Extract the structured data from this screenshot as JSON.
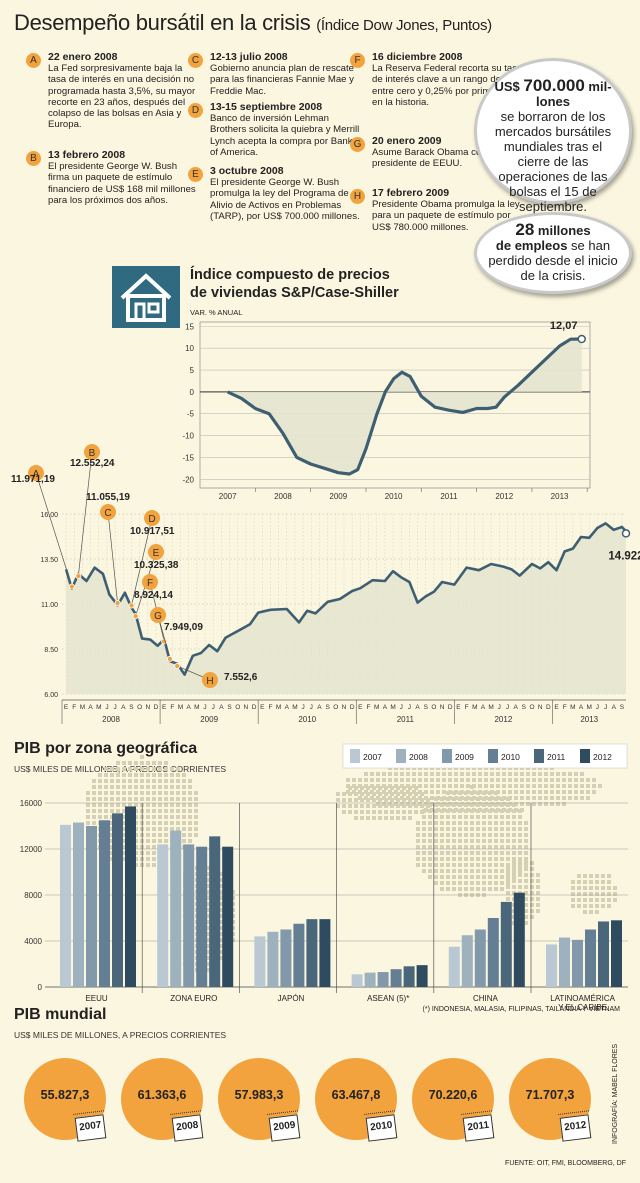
{
  "title": "Desempeño bursátil en la crisis",
  "title_sub": "(Índice Dow Jones, Puntos)",
  "events": [
    {
      "badge": "A",
      "date": "22 enero 2008",
      "text": "La Fed sorpresivamente baja la tasa de interés en una decisión no programada hasta 3,5%, su mayor recorte en 23 años, después del colapso de las bolsas en Asia y Europa."
    },
    {
      "badge": "B",
      "date": "13 febrero 2008",
      "text": "El presidente George W. Bush firma un paquete de estímulo financiero de US$ 168 mil millones para los próximos dos años."
    },
    {
      "badge": "C",
      "date": "12-13 julio 2008",
      "text": "Gobierno anuncia plan de rescate para las financieras Fannie Mae y Freddie Mac."
    },
    {
      "badge": "D",
      "date": "13-15 septiembre 2008",
      "text": "Banco de inversión Lehman Brothers solicita la quiebra y Merrill Lynch acepta la compra por Bank of America."
    },
    {
      "badge": "E",
      "date": "3 octubre 2008",
      "text": "El presidente George W. Bush promulga la ley del Programa de Alivio de Activos en Problemas (TARP), por US$ 700.000 millones."
    },
    {
      "badge": "F",
      "date": "16 diciembre 2008",
      "text": "La Reserva Federal recorta su tasa de interés clave a un rango de entre cero y 0,25% por primera vez en la historia."
    },
    {
      "badge": "G",
      "date": "20 enero 2009",
      "text": "Asume Barack Obama como presidente de EEUU."
    },
    {
      "badge": "H",
      "date": "17 febrero 2009",
      "text": "Presidente Obama promulga la ley para un paquete de estímulo por US$ 780.000 millones."
    }
  ],
  "bubble1": {
    "pre": "US$ ",
    "big": "700.000",
    "post": " mil-lones",
    "text": "se borraron de los mercados bursátiles mundiales tras el cierre de las operaciones de las bolsas el 15 de septiembre."
  },
  "bubble2": {
    "big": "28",
    "post": " millones",
    "bold2": "de empleos",
    "text1": " se han",
    "text2": "perdido desde el inicio de la crisis."
  },
  "case_shiller": {
    "icon": "house-icon",
    "title_line1": "Índice compuesto de precios",
    "title_line2": "de viviendas S&P/Case-Shiller",
    "unit": "VAR. % ANUAL",
    "last_label": "12,07"
  },
  "dow_annotations": [
    {
      "badge": "A",
      "value": "11.971,19"
    },
    {
      "badge": "B",
      "value": "12.552,24"
    },
    {
      "badge": "C",
      "value": "11.055,19"
    },
    {
      "badge": "D",
      "value": "10.917,51"
    },
    {
      "badge": "E",
      "value": "10.325,38"
    },
    {
      "badge": "F",
      "value": "8.924,14"
    },
    {
      "badge": "G",
      "value": "7.949,09"
    },
    {
      "badge": "H",
      "value": "7.552,6"
    }
  ],
  "dow_last": "14.922",
  "pib_zona": {
    "title": "PIB por zona geográfica",
    "unit": "US$ MILES DE MILLONES, A PRECIOS CORRIENTES",
    "note": "(*) INDONESIA, MALASIA, FILIPINAS, TAILANDIA Y VIETNAM"
  },
  "pib_mundial": {
    "title": "PIB mundial",
    "unit": "US$ MILES DE MILLONES, A PRECIOS CORRIENTES",
    "items": [
      {
        "year": "2007",
        "value": "55.827,3"
      },
      {
        "year": "2008",
        "value": "61.363,6"
      },
      {
        "year": "2009",
        "value": "57.983,3"
      },
      {
        "year": "2010",
        "value": "63.467,8"
      },
      {
        "year": "2011",
        "value": "70.220,6"
      },
      {
        "year": "2012",
        "value": "71.707,3"
      }
    ]
  },
  "credit": "INFOGRAFÍA: MABEL FLORES",
  "source": "FUENTE: OIT, FMI, BLOOMBERG, DF",
  "colors": {
    "line": "#3e5f72",
    "orange": "#f2a33d",
    "bg": "#fbf6df",
    "fill": "#e4e4cf"
  },
  "chart_data": [
    {
      "type": "line",
      "title": "Índice compuesto de precios de viviendas S&P/Case-Shiller",
      "ylabel": "VAR. % ANUAL",
      "ylim": [
        -22,
        16
      ],
      "yticks": [
        15,
        10,
        5,
        0,
        -5,
        -10,
        -15,
        -20
      ],
      "xticks": [
        "2007",
        "2008",
        "2009",
        "2010",
        "2011",
        "2012",
        "2013"
      ],
      "x": [
        2007.0,
        2007.25,
        2007.5,
        2007.75,
        2008.0,
        2008.25,
        2008.5,
        2008.75,
        2009.0,
        2009.2,
        2009.35,
        2009.5,
        2009.7,
        2009.85,
        2010.0,
        2010.15,
        2010.3,
        2010.5,
        2010.75,
        2011.0,
        2011.25,
        2011.5,
        2011.7,
        2011.85,
        2012.0,
        2012.25,
        2012.5,
        2012.75,
        2013.0,
        2013.2,
        2013.4
      ],
      "y": [
        0,
        -1.5,
        -3.8,
        -5,
        -9.5,
        -15,
        -16.5,
        -17.5,
        -18.5,
        -18.8,
        -17.8,
        -13,
        -5,
        0,
        3,
        4.5,
        3.5,
        -1,
        -3.5,
        -4.2,
        -4.7,
        -3.8,
        -3.8,
        -3.5,
        -1.2,
        1.5,
        4.5,
        7.5,
        10.5,
        12.07,
        12.1
      ],
      "last_label": "12,07"
    },
    {
      "type": "line",
      "title": "Desempeño bursátil en la crisis (Índice Dow Jones, Puntos)",
      "ylim": [
        6000,
        16000
      ],
      "yticks": [
        "16.00",
        "13.50",
        "11.00",
        "8.50",
        "6.00"
      ],
      "months": [
        "E",
        "F",
        "M",
        "A",
        "M",
        "J",
        "J",
        "A",
        "S",
        "O",
        "N",
        "D",
        "E",
        "F",
        "M",
        "A",
        "M",
        "J",
        "J",
        "A",
        "S",
        "O",
        "N",
        "D",
        "E",
        "F",
        "M",
        "A",
        "M",
        "J",
        "J",
        "A",
        "S",
        "O",
        "N",
        "D",
        "E",
        "F",
        "M",
        "A",
        "M",
        "J",
        "J",
        "A",
        "S",
        "O",
        "N",
        "D",
        "E",
        "F",
        "M",
        "A",
        "M",
        "J",
        "J",
        "A",
        "S",
        "O",
        "N",
        "D",
        "E",
        "F",
        "M",
        "A",
        "M",
        "J",
        "J",
        "A",
        "S"
      ],
      "years": [
        "2008",
        "2009",
        "2010",
        "2011",
        "2012",
        "2013"
      ],
      "x": [
        0,
        0.7,
        1.5,
        2.5,
        3.5,
        4.5,
        5.3,
        6.3,
        7.2,
        8.0,
        8.5,
        9.3,
        10.3,
        11.2,
        12.0,
        12.7,
        13.6,
        14.5,
        15.5,
        16.5,
        17.5,
        18.5,
        19.5,
        20.5,
        21.5,
        22.5,
        23.5,
        25,
        27,
        28.5,
        29.5,
        30.5,
        32,
        33.5,
        35,
        36,
        37.5,
        39,
        40,
        41,
        42,
        43,
        44,
        45,
        46,
        47.5,
        49,
        50.5,
        52,
        53.5,
        54.5,
        55.5,
        57,
        58,
        59,
        60,
        61,
        62,
        63,
        64,
        65,
        66,
        67,
        68,
        68.5
      ],
      "y": [
        12800,
        11971,
        12552,
        12400,
        12900,
        12800,
        11400,
        11055,
        11500,
        10917,
        10325,
        9200,
        8900,
        8800,
        8924,
        7949,
        7553,
        7200,
        8000,
        8400,
        8600,
        8500,
        9000,
        9500,
        9500,
        10000,
        10400,
        10800,
        10600,
        10100,
        10500,
        10600,
        11000,
        11400,
        11600,
        12000,
        12200,
        12400,
        12700,
        12600,
        12100,
        11200,
        11300,
        11800,
        12100,
        12200,
        12900,
        13000,
        13100,
        13200,
        12800,
        12700,
        13100,
        13100,
        13200,
        13000,
        13800,
        14200,
        14600,
        14800,
        15100,
        15600,
        15000,
        15400,
        14922
      ],
      "markers": [
        "A",
        "B",
        "C",
        "D",
        "E",
        "F",
        "G",
        "H"
      ],
      "last_label": "14.922"
    },
    {
      "type": "bar",
      "title": "PIB por zona geográfica",
      "ylabel": "US$ MILES DE MILLONES, A PRECIOS CORRIENTES",
      "ylim": [
        0,
        16000
      ],
      "yticks": [
        0,
        4000,
        8000,
        12000,
        16000
      ],
      "categories": [
        "EEUU",
        "ZONA EURO",
        "JAPÓN",
        "ASEAN (5)*",
        "CHINA",
        "LATINOAMÉRICA Y EL CARIBE"
      ],
      "series": [
        {
          "name": "2007",
          "values": [
            14100,
            12400,
            4400,
            1100,
            3500,
            3700
          ]
        },
        {
          "name": "2008",
          "values": [
            14300,
            13600,
            4800,
            1250,
            4500,
            4300
          ]
        },
        {
          "name": "2009",
          "values": [
            14000,
            12400,
            5000,
            1300,
            5000,
            4100
          ]
        },
        {
          "name": "2010",
          "values": [
            14500,
            12200,
            5500,
            1550,
            6000,
            5000
          ]
        },
        {
          "name": "2011",
          "values": [
            15100,
            13100,
            5900,
            1800,
            7400,
            5700
          ]
        },
        {
          "name": "2012",
          "values": [
            15700,
            12200,
            5900,
            1900,
            8200,
            5800
          ]
        }
      ],
      "series_colors": [
        "#b9c8d3",
        "#9db1bf",
        "#8199aa",
        "#647f93",
        "#4a667a",
        "#2f4b5f"
      ]
    }
  ]
}
